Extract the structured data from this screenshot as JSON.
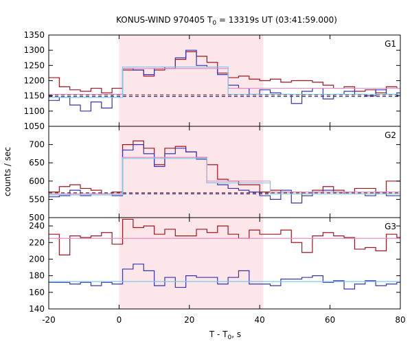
{
  "chart_data": {
    "type": "line",
    "title_main": "KONUS-WIND 970405 T",
    "title_sub": "0",
    "title_rest": " = 13319s UT (03:41:59.000)",
    "xlabel_main": "T - T",
    "xlabel_sub": "0",
    "xlabel_rest": ", s",
    "ylabel": "counts / sec",
    "xlim": [
      -20,
      80
    ],
    "x_ticks": [
      "-20",
      "0",
      "20",
      "40",
      "60",
      "80"
    ],
    "highlight_interval": [
      0,
      41
    ],
    "colors": {
      "red": "#a0141e",
      "blue": "#3333b3",
      "pink": "#e090c8",
      "cyan": "#7fc8e8",
      "highlight": "#fde6e9",
      "red_dash": "#7a1a2a",
      "blue_dash": "#2a2a90"
    },
    "panels": [
      {
        "label": "G1",
        "ylim": [
          1050,
          1350
        ],
        "y_ticks": [
          "1050",
          "1100",
          "1150",
          "1200",
          "1250",
          "1300",
          "1350"
        ],
        "bin_edges": [
          -20,
          -17,
          -14,
          -11,
          -8,
          -5,
          -2,
          1,
          4,
          7,
          10,
          13,
          16,
          19,
          22,
          25,
          28,
          31,
          34,
          37,
          40,
          43,
          46,
          49,
          52,
          55,
          58,
          61,
          64,
          67,
          70,
          73,
          76,
          79,
          80
        ],
        "series": [
          {
            "color": "red",
            "values": [
              1210,
              1180,
              1170,
              1165,
              1175,
              1160,
              1175,
              1235,
              1235,
              1215,
              1235,
              1240,
              1270,
              1295,
              1280,
              1260,
              1225,
              1210,
              1215,
              1205,
              1200,
              1205,
              1195,
              1200,
              1200,
              1195,
              1185,
              1175,
              1180,
              1165,
              1170,
              1160,
              1180,
              1175
            ]
          },
          {
            "color": "blue",
            "values": [
              1135,
              1145,
              1120,
              1100,
              1130,
              1110,
              1155,
              1240,
              1235,
              1220,
              1240,
              1245,
              1275,
              1300,
              1250,
              1245,
              1220,
              1185,
              1175,
              1155,
              1170,
              1160,
              1155,
              1125,
              1165,
              1175,
              1140,
              1155,
              1165,
              1155,
              1150,
              1170,
              1155,
              1160
            ]
          },
          {
            "color": "pink",
            "values": [
              1155,
              1155,
              1155,
              1155,
              1155,
              1155,
              1155,
              1240,
              1240,
              1240,
              1240,
              1240,
              1240,
              1240,
              1240,
              1240,
              1240,
              1175,
              1175,
              1175,
              1175,
              1175,
              1175,
              1175,
              1175,
              1175,
              1175,
              1175,
              1175,
              1175,
              1175,
              1175,
              1175,
              1175
            ]
          },
          {
            "color": "cyan",
            "values": [
              1145,
              1145,
              1145,
              1145,
              1145,
              1145,
              1145,
              1245,
              1245,
              1245,
              1245,
              1245,
              1245,
              1245,
              1245,
              1245,
              1245,
              1155,
              1155,
              1155,
              1155,
              1155,
              1155,
              1155,
              1155,
              1155,
              1155,
              1155,
              1155,
              1155,
              1155,
              1155,
              1155,
              1155
            ]
          }
        ],
        "dashed_levels": [
          {
            "color": "red_dash",
            "value": 1153
          },
          {
            "color": "blue_dash",
            "value": 1148
          }
        ]
      },
      {
        "label": "G2",
        "ylim": [
          500,
          750
        ],
        "y_ticks": [
          "500",
          "550",
          "600",
          "650",
          "700"
        ],
        "bin_edges": [
          -20,
          -17,
          -14,
          -11,
          -8,
          -5,
          -2,
          1,
          4,
          7,
          10,
          13,
          16,
          19,
          22,
          25,
          28,
          31,
          34,
          37,
          40,
          43,
          46,
          49,
          52,
          55,
          58,
          61,
          64,
          67,
          70,
          73,
          76,
          79,
          80
        ],
        "series": [
          {
            "color": "red",
            "values": [
              570,
              585,
              590,
              580,
              575,
              565,
              570,
              700,
              710,
              690,
              645,
              690,
              695,
              680,
              665,
              645,
              605,
              600,
              590,
              590,
              570,
              575,
              570,
              570,
              560,
              575,
              585,
              575,
              570,
              580,
              580,
              565,
              600,
              600
            ]
          },
          {
            "color": "blue",
            "values": [
              557,
              560,
              575,
              560,
              565,
              565,
              560,
              685,
              700,
              675,
              640,
              675,
              690,
              680,
              660,
              595,
              590,
              580,
              575,
              570,
              560,
              550,
              575,
              540,
              560,
              570,
              575,
              570,
              565,
              565,
              560,
              570,
              560,
              560
            ]
          },
          {
            "color": "pink",
            "values": [
              565,
              565,
              565,
              565,
              565,
              565,
              565,
              665,
              665,
              665,
              665,
              665,
              665,
              665,
              665,
              600,
              600,
              600,
              600,
              600,
              600,
              570,
              570,
              570,
              570,
              570,
              570,
              570,
              570,
              570,
              570,
              570,
              570,
              570
            ]
          },
          {
            "color": "cyan",
            "values": [
              562,
              562,
              562,
              562,
              562,
              562,
              562,
              662,
              662,
              662,
              662,
              662,
              662,
              662,
              662,
              595,
              595,
              595,
              595,
              595,
              595,
              565,
              565,
              565,
              565,
              565,
              565,
              565,
              565,
              565,
              565,
              565,
              565,
              565
            ]
          }
        ],
        "dashed_levels": [
          {
            "color": "red_dash",
            "value": 568
          },
          {
            "color": "blue_dash",
            "value": 565
          }
        ]
      },
      {
        "label": "G3",
        "ylim": [
          140,
          250
        ],
        "y_ticks": [
          "140",
          "160",
          "180",
          "200",
          "220",
          "240"
        ],
        "bin_edges": [
          -20,
          -17,
          -14,
          -11,
          -8,
          -5,
          -2,
          1,
          4,
          7,
          10,
          13,
          16,
          19,
          22,
          25,
          28,
          31,
          34,
          37,
          40,
          43,
          46,
          49,
          52,
          55,
          58,
          61,
          64,
          67,
          70,
          73,
          76,
          79,
          80
        ],
        "series": [
          {
            "color": "red",
            "values": [
              230,
              205,
              228,
              226,
              228,
              232,
              218,
              248,
              238,
              240,
              230,
              236,
              228,
              228,
              236,
              232,
              240,
              230,
              225,
              235,
              230,
              230,
              235,
              220,
              208,
              228,
              232,
              228,
              226,
              212,
              214,
              210,
              230,
              226
            ]
          },
          {
            "color": "blue",
            "values": [
              172,
              172,
              170,
              172,
              168,
              172,
              170,
              188,
              194,
              186,
              168,
              178,
              166,
              180,
              178,
              178,
              170,
              178,
              186,
              170,
              170,
              168,
              176,
              176,
              178,
              180,
              172,
              174,
              164,
              170,
              174,
              168,
              170,
              172
            ]
          },
          {
            "color": "pink",
            "values": [
              225,
              225,
              225,
              225,
              225,
              225,
              225,
              225,
              225,
              225,
              225,
              225,
              225,
              225,
              225,
              225,
              225,
              225,
              225,
              225,
              225,
              225,
              225,
              225,
              225,
              225,
              225,
              225,
              225,
              225,
              225,
              225,
              225,
              225
            ]
          },
          {
            "color": "cyan",
            "values": [
              173,
              173,
              173,
              173,
              173,
              173,
              173,
              173,
              173,
              173,
              173,
              173,
              173,
              173,
              173,
              173,
              173,
              173,
              173,
              173,
              173,
              173,
              173,
              173,
              173,
              173,
              173,
              173,
              173,
              173,
              173,
              173,
              173,
              173
            ]
          }
        ],
        "dashed_levels": []
      }
    ]
  }
}
